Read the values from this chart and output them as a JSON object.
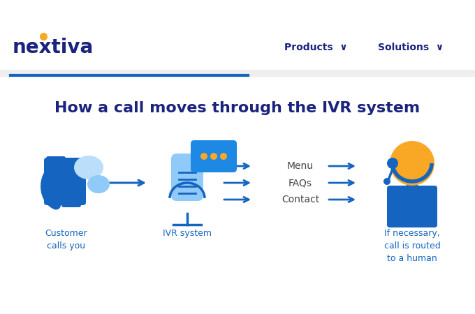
{
  "bg_color": "#ffffff",
  "header_line_color": "#1565c0",
  "title": "How a call moves through the IVR system",
  "title_color": "#1a237e",
  "title_fontsize": 16,
  "nav_items": [
    "Products  ∨",
    "Solutions  ∨"
  ],
  "nav_color": "#1a237e",
  "nav_fontsize": 10,
  "logo_color": "#1a237e",
  "logo_dot_color": "#f9a825",
  "logo_fontsize": 20,
  "main_blue": "#1565c0",
  "mid_blue": "#1e88e5",
  "light_blue": "#90caf9",
  "lighter_blue": "#bbdefb",
  "yellow": "#f9a825",
  "arrow_color": "#1565c0",
  "label_color": "#1565c0",
  "label_fontsize": 9,
  "menu_items": [
    "Menu",
    "FAQs",
    "Contact"
  ],
  "menu_color": "#444444",
  "menu_fontsize": 10
}
